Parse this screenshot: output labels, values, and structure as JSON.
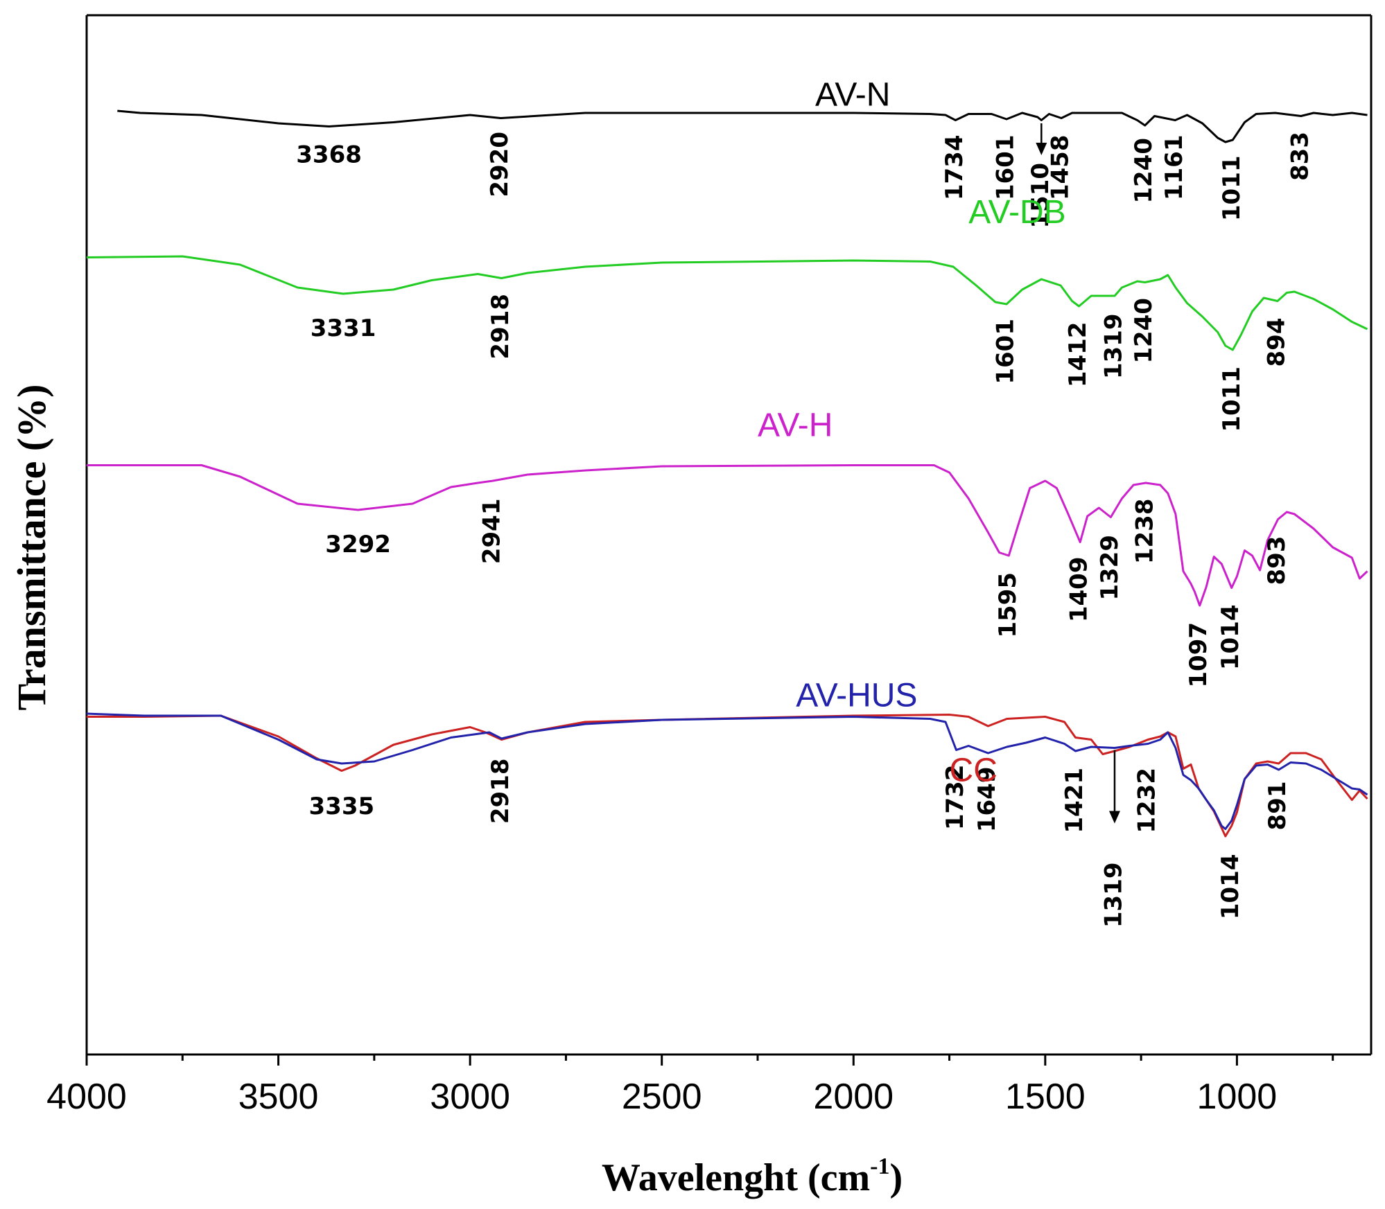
{
  "chart_data": {
    "type": "line",
    "title": "",
    "xlabel": "Wavelenght (cm",
    "xlabel_sup": "-1",
    "xlabel_close": ")",
    "ylabel": "Transmittance (%)",
    "xlim": [
      4000,
      650
    ],
    "x_reversed": true,
    "ylim": [
      0,
      100
    ],
    "y_ticks_shown": false,
    "x_ticks": [
      4000,
      3500,
      3000,
      2500,
      2000,
      1500,
      1000
    ],
    "x_minor_step": 250,
    "series": [
      {
        "name": "AV-N",
        "color": "#000000",
        "label_at": [
          2100,
          91.3
        ],
        "points": [
          [
            3920,
            90.8
          ],
          [
            3860,
            90.6
          ],
          [
            3700,
            90.4
          ],
          [
            3500,
            89.6
          ],
          [
            3368,
            89.3
          ],
          [
            3200,
            89.7
          ],
          [
            3000,
            90.4
          ],
          [
            2920,
            90.1
          ],
          [
            2700,
            90.6
          ],
          [
            2000,
            90.6
          ],
          [
            1800,
            90.5
          ],
          [
            1760,
            90.4
          ],
          [
            1734,
            89.9
          ],
          [
            1700,
            90.5
          ],
          [
            1640,
            90.5
          ],
          [
            1601,
            90.0
          ],
          [
            1560,
            90.6
          ],
          [
            1520,
            90.2
          ],
          [
            1510,
            89.9
          ],
          [
            1490,
            90.5
          ],
          [
            1458,
            90.1
          ],
          [
            1430,
            90.6
          ],
          [
            1300,
            90.6
          ],
          [
            1260,
            89.9
          ],
          [
            1240,
            89.4
          ],
          [
            1215,
            90.3
          ],
          [
            1161,
            89.9
          ],
          [
            1130,
            90.4
          ],
          [
            1090,
            89.6
          ],
          [
            1050,
            88.2
          ],
          [
            1030,
            87.8
          ],
          [
            1011,
            88.0
          ],
          [
            980,
            89.7
          ],
          [
            950,
            90.5
          ],
          [
            900,
            90.6
          ],
          [
            833,
            90.3
          ],
          [
            800,
            90.6
          ],
          [
            750,
            90.4
          ],
          [
            700,
            90.6
          ],
          [
            660,
            90.4
          ]
        ]
      },
      {
        "name": "AV-DB",
        "color": "#22cc22",
        "label_at": [
          1700,
          80.0
        ],
        "points": [
          [
            4000,
            76.7
          ],
          [
            3750,
            76.8
          ],
          [
            3600,
            76.0
          ],
          [
            3450,
            73.8
          ],
          [
            3331,
            73.2
          ],
          [
            3200,
            73.6
          ],
          [
            3100,
            74.5
          ],
          [
            2980,
            75.1
          ],
          [
            2918,
            74.7
          ],
          [
            2850,
            75.2
          ],
          [
            2700,
            75.8
          ],
          [
            2500,
            76.2
          ],
          [
            2000,
            76.4
          ],
          [
            1800,
            76.3
          ],
          [
            1740,
            75.8
          ],
          [
            1680,
            74.0
          ],
          [
            1630,
            72.4
          ],
          [
            1601,
            72.2
          ],
          [
            1560,
            73.6
          ],
          [
            1510,
            74.6
          ],
          [
            1460,
            74.0
          ],
          [
            1430,
            72.5
          ],
          [
            1412,
            72.0
          ],
          [
            1380,
            73.0
          ],
          [
            1319,
            73.0
          ],
          [
            1300,
            73.8
          ],
          [
            1260,
            74.4
          ],
          [
            1240,
            74.3
          ],
          [
            1200,
            74.6
          ],
          [
            1180,
            75.0
          ],
          [
            1160,
            73.8
          ],
          [
            1130,
            72.3
          ],
          [
            1090,
            71.0
          ],
          [
            1050,
            69.5
          ],
          [
            1030,
            68.2
          ],
          [
            1011,
            67.8
          ],
          [
            990,
            69.2
          ],
          [
            960,
            71.5
          ],
          [
            930,
            72.8
          ],
          [
            894,
            72.5
          ],
          [
            870,
            73.3
          ],
          [
            850,
            73.4
          ],
          [
            800,
            72.7
          ],
          [
            750,
            71.7
          ],
          [
            700,
            70.5
          ],
          [
            660,
            69.8
          ]
        ]
      },
      {
        "name": "AV-H",
        "color": "#cc22cc",
        "label_at": [
          2250,
          59.5
        ],
        "points": [
          [
            4000,
            56.7
          ],
          [
            3700,
            56.7
          ],
          [
            3600,
            55.6
          ],
          [
            3450,
            53.0
          ],
          [
            3292,
            52.4
          ],
          [
            3150,
            53.0
          ],
          [
            3050,
            54.6
          ],
          [
            2980,
            55.0
          ],
          [
            2941,
            55.2
          ],
          [
            2850,
            55.8
          ],
          [
            2700,
            56.2
          ],
          [
            2500,
            56.6
          ],
          [
            2000,
            56.7
          ],
          [
            1790,
            56.7
          ],
          [
            1750,
            56.0
          ],
          [
            1700,
            53.5
          ],
          [
            1650,
            50.3
          ],
          [
            1620,
            48.3
          ],
          [
            1595,
            48.0
          ],
          [
            1570,
            51.0
          ],
          [
            1540,
            54.5
          ],
          [
            1500,
            55.2
          ],
          [
            1470,
            54.5
          ],
          [
            1440,
            52.0
          ],
          [
            1409,
            49.3
          ],
          [
            1390,
            51.8
          ],
          [
            1360,
            52.6
          ],
          [
            1329,
            51.7
          ],
          [
            1300,
            53.5
          ],
          [
            1270,
            54.8
          ],
          [
            1238,
            55.0
          ],
          [
            1200,
            54.8
          ],
          [
            1180,
            54.0
          ],
          [
            1160,
            52.0
          ],
          [
            1140,
            46.5
          ],
          [
            1120,
            45.3
          ],
          [
            1110,
            44.5
          ],
          [
            1097,
            43.2
          ],
          [
            1080,
            45.0
          ],
          [
            1060,
            47.9
          ],
          [
            1040,
            47.2
          ],
          [
            1014,
            44.9
          ],
          [
            1000,
            46.0
          ],
          [
            980,
            48.5
          ],
          [
            960,
            48.0
          ],
          [
            940,
            46.6
          ],
          [
            920,
            49.5
          ],
          [
            893,
            51.5
          ],
          [
            870,
            52.2
          ],
          [
            850,
            52.0
          ],
          [
            800,
            50.6
          ],
          [
            750,
            48.8
          ],
          [
            700,
            47.8
          ],
          [
            680,
            45.8
          ],
          [
            660,
            46.5
          ]
        ]
      },
      {
        "name": "CC",
        "color": "#cc2222",
        "label_at": [
          1750,
          26.3
        ],
        "points": [
          [
            4000,
            32.5
          ],
          [
            3850,
            32.5
          ],
          [
            3650,
            32.6
          ],
          [
            3500,
            30.6
          ],
          [
            3400,
            28.5
          ],
          [
            3335,
            27.3
          ],
          [
            3300,
            27.8
          ],
          [
            3200,
            29.8
          ],
          [
            3100,
            30.8
          ],
          [
            3000,
            31.5
          ],
          [
            2960,
            31.0
          ],
          [
            2918,
            30.3
          ],
          [
            2850,
            31.0
          ],
          [
            2700,
            32.0
          ],
          [
            2500,
            32.2
          ],
          [
            2000,
            32.6
          ],
          [
            1750,
            32.7
          ],
          [
            1700,
            32.5
          ],
          [
            1649,
            31.6
          ],
          [
            1600,
            32.3
          ],
          [
            1500,
            32.5
          ],
          [
            1450,
            32.0
          ],
          [
            1421,
            30.5
          ],
          [
            1380,
            30.3
          ],
          [
            1350,
            28.9
          ],
          [
            1319,
            29.2
          ],
          [
            1280,
            29.6
          ],
          [
            1232,
            30.3
          ],
          [
            1200,
            30.6
          ],
          [
            1180,
            31.0
          ],
          [
            1160,
            30.6
          ],
          [
            1140,
            27.5
          ],
          [
            1120,
            27.9
          ],
          [
            1100,
            25.6
          ],
          [
            1080,
            24.5
          ],
          [
            1060,
            23.4
          ],
          [
            1040,
            21.8
          ],
          [
            1030,
            21.0
          ],
          [
            1014,
            22.0
          ],
          [
            1000,
            23.3
          ],
          [
            980,
            26.5
          ],
          [
            950,
            28.0
          ],
          [
            920,
            28.2
          ],
          [
            891,
            28.0
          ],
          [
            860,
            29.0
          ],
          [
            820,
            29.0
          ],
          [
            780,
            28.4
          ],
          [
            740,
            26.4
          ],
          [
            700,
            24.5
          ],
          [
            680,
            25.4
          ],
          [
            660,
            24.6
          ]
        ]
      },
      {
        "name": "AV-HUS",
        "color": "#2222aa",
        "label_at": [
          2150,
          33.5
        ],
        "points": [
          [
            4000,
            32.8
          ],
          [
            3850,
            32.6
          ],
          [
            3650,
            32.6
          ],
          [
            3500,
            30.3
          ],
          [
            3400,
            28.4
          ],
          [
            3335,
            28.0
          ],
          [
            3250,
            28.2
          ],
          [
            3150,
            29.3
          ],
          [
            3050,
            30.5
          ],
          [
            2950,
            31.0
          ],
          [
            2918,
            30.4
          ],
          [
            2850,
            31.0
          ],
          [
            2700,
            31.8
          ],
          [
            2500,
            32.2
          ],
          [
            2000,
            32.5
          ],
          [
            1800,
            32.3
          ],
          [
            1760,
            32.0
          ],
          [
            1732,
            29.3
          ],
          [
            1700,
            29.7
          ],
          [
            1649,
            29.0
          ],
          [
            1600,
            29.6
          ],
          [
            1550,
            30.0
          ],
          [
            1500,
            30.5
          ],
          [
            1450,
            29.9
          ],
          [
            1421,
            29.2
          ],
          [
            1380,
            29.6
          ],
          [
            1319,
            29.5
          ],
          [
            1280,
            29.7
          ],
          [
            1232,
            29.9
          ],
          [
            1200,
            30.3
          ],
          [
            1180,
            31.0
          ],
          [
            1160,
            29.5
          ],
          [
            1140,
            26.9
          ],
          [
            1120,
            26.4
          ],
          [
            1100,
            25.6
          ],
          [
            1080,
            24.5
          ],
          [
            1060,
            23.5
          ],
          [
            1040,
            22.0
          ],
          [
            1030,
            21.7
          ],
          [
            1014,
            22.5
          ],
          [
            1000,
            24.0
          ],
          [
            980,
            26.5
          ],
          [
            950,
            27.8
          ],
          [
            920,
            27.9
          ],
          [
            891,
            27.4
          ],
          [
            860,
            28.1
          ],
          [
            820,
            28.0
          ],
          [
            780,
            27.4
          ],
          [
            740,
            26.5
          ],
          [
            700,
            25.6
          ],
          [
            680,
            25.5
          ],
          [
            660,
            25.0
          ]
        ]
      }
    ],
    "annotations": [
      {
        "text": "3368",
        "x": 3368,
        "y": 87.5,
        "rotate": false
      },
      {
        "text": "2920",
        "x": 2920,
        "y": 88.8,
        "rotate": true
      },
      {
        "text": "1734",
        "x": 1734,
        "y": 88.5,
        "rotate": true
      },
      {
        "text": "1601",
        "x": 1601,
        "y": 88.5,
        "rotate": true
      },
      {
        "text": "1510",
        "x": 1510,
        "y": 85.8,
        "rotate": true
      },
      {
        "text": "1458",
        "x": 1458,
        "y": 88.5,
        "rotate": true
      },
      {
        "text": "1240",
        "x": 1240,
        "y": 88.2,
        "rotate": true
      },
      {
        "text": "1161",
        "x": 1161,
        "y": 88.5,
        "rotate": true
      },
      {
        "text": "1011",
        "x": 1011,
        "y": 86.5,
        "rotate": true
      },
      {
        "text": "833",
        "x": 833,
        "y": 88.8,
        "rotate": true
      },
      {
        "text": "3331",
        "x": 3331,
        "y": 70.8,
        "rotate": false
      },
      {
        "text": "2918",
        "x": 2918,
        "y": 73.2,
        "rotate": true
      },
      {
        "text": "1601",
        "x": 1601,
        "y": 70.8,
        "rotate": true
      },
      {
        "text": "1412",
        "x": 1412,
        "y": 70.5,
        "rotate": true
      },
      {
        "text": "1319",
        "x": 1319,
        "y": 71.3,
        "rotate": true
      },
      {
        "text": "1240",
        "x": 1240,
        "y": 72.8,
        "rotate": true
      },
      {
        "text": "1011",
        "x": 1011,
        "y": 66.2,
        "rotate": true
      },
      {
        "text": "894",
        "x": 894,
        "y": 70.9,
        "rotate": true
      },
      {
        "text": "3292",
        "x": 3292,
        "y": 50.0,
        "rotate": false
      },
      {
        "text": "2941",
        "x": 2941,
        "y": 53.5,
        "rotate": true
      },
      {
        "text": "1595",
        "x": 1595,
        "y": 46.4,
        "rotate": true
      },
      {
        "text": "1409",
        "x": 1409,
        "y": 47.9,
        "rotate": true
      },
      {
        "text": "1329",
        "x": 1329,
        "y": 50.0,
        "rotate": true
      },
      {
        "text": "1238",
        "x": 1238,
        "y": 53.5,
        "rotate": true
      },
      {
        "text": "1097",
        "x": 1097,
        "y": 41.6,
        "rotate": true
      },
      {
        "text": "1014",
        "x": 1014,
        "y": 43.3,
        "rotate": true
      },
      {
        "text": "893",
        "x": 893,
        "y": 49.9,
        "rotate": true
      },
      {
        "text": "3335",
        "x": 3335,
        "y": 24.8,
        "rotate": false
      },
      {
        "text": "2918",
        "x": 2918,
        "y": 28.5,
        "rotate": true
      },
      {
        "text": "1732",
        "x": 1732,
        "y": 27.9,
        "rotate": true
      },
      {
        "text": "1649",
        "x": 1649,
        "y": 27.7,
        "rotate": true
      },
      {
        "text": "1421",
        "x": 1421,
        "y": 27.6,
        "rotate": true
      },
      {
        "text": "1319",
        "x": 1319,
        "y": 18.5,
        "rotate": true
      },
      {
        "text": "1232",
        "x": 1232,
        "y": 27.6,
        "rotate": true
      },
      {
        "text": "1014",
        "x": 1014,
        "y": 19.3,
        "rotate": true
      },
      {
        "text": "891",
        "x": 891,
        "y": 26.3,
        "rotate": true
      }
    ],
    "arrows": [
      {
        "x": 1510,
        "y_from": 89.6,
        "y_to": 86.8
      },
      {
        "x": 1319,
        "y_from": 29.3,
        "y_to": 22.5
      }
    ]
  }
}
